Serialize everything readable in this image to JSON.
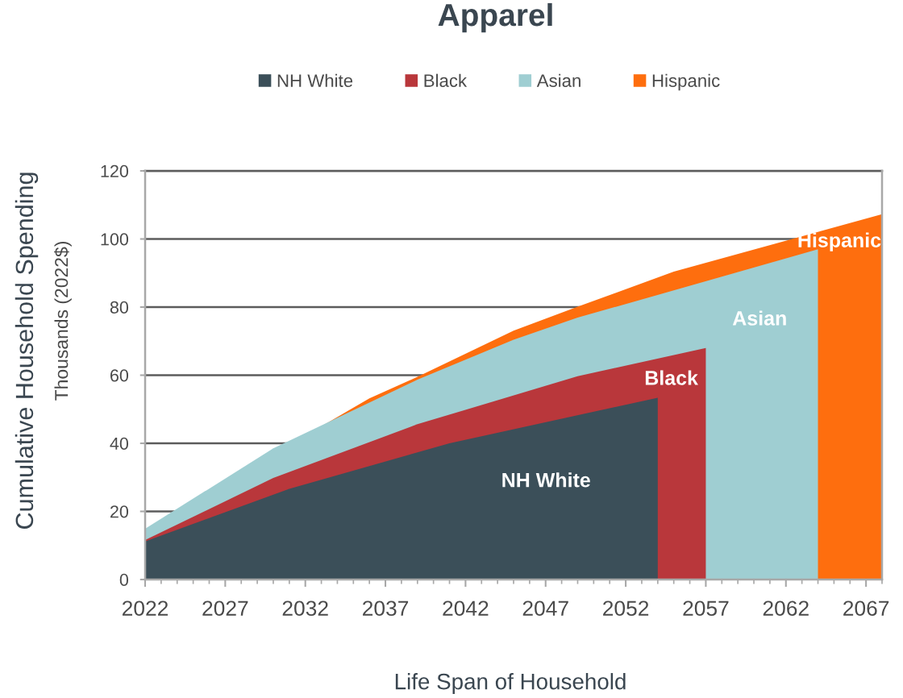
{
  "chart_data": {
    "type": "area",
    "title": "Apparel",
    "xlabel": "Life Span of Household",
    "ylabel": "Cumulative Household Spending\nThousands (2022$)",
    "series": [
      {
        "name": "NH White",
        "color": "#3b4f59",
        "x": [
          2022,
          2031,
          2041,
          2054
        ],
        "values": [
          11.2,
          26.6,
          40.0,
          53.4
        ]
      },
      {
        "name": "Black",
        "color": "#b9373b",
        "x": [
          2022,
          2030,
          2039,
          2049,
          2057
        ],
        "values": [
          11.6,
          29.8,
          45.6,
          59.7,
          68.0
        ]
      },
      {
        "name": "Asian",
        "color": "#9fced2",
        "x": [
          2022,
          2030,
          2039,
          2045,
          2049,
          2064
        ],
        "values": [
          14.9,
          38.5,
          58.7,
          70.4,
          76.9,
          97.0
        ]
      },
      {
        "name": "Hispanic",
        "color": "#fe6e0e",
        "x": [
          2033,
          2036,
          2039,
          2045,
          2049,
          2055,
          2068
        ],
        "values": [
          45.0,
          53.2,
          59.5,
          73.1,
          80.1,
          90.4,
          107.3
        ]
      }
    ],
    "xlim": [
      2022,
      2068
    ],
    "xticks": [
      2022,
      {
        "value": 2023,
        "label": null
      },
      {
        "value": 2024,
        "label": null
      },
      {
        "value": 2025,
        "label": null
      },
      {
        "value": 2026,
        "label": null
      },
      2027,
      {
        "value": 2028,
        "label": null
      },
      {
        "value": 2029,
        "label": null
      },
      {
        "value": 2030,
        "label": null
      },
      {
        "value": 2031,
        "label": null
      },
      2032,
      {
        "value": 2033,
        "label": null
      },
      {
        "value": 2034,
        "label": null
      },
      {
        "value": 2035,
        "label": null
      },
      {
        "value": 2036,
        "label": null
      },
      2037,
      {
        "value": 2038,
        "label": null
      },
      {
        "value": 2039,
        "label": null
      },
      {
        "value": 2040,
        "label": null
      },
      {
        "value": 2041,
        "label": null
      },
      2042,
      {
        "value": 2043,
        "label": null
      },
      {
        "value": 2044,
        "label": null
      },
      {
        "value": 2045,
        "label": null
      },
      {
        "value": 2046,
        "label": null
      },
      2047,
      {
        "value": 2048,
        "label": null
      },
      {
        "value": 2049,
        "label": null
      },
      {
        "value": 2050,
        "label": null
      },
      {
        "value": 2051,
        "label": null
      },
      2052,
      {
        "value": 2053,
        "label": null
      },
      {
        "value": 2054,
        "label": null
      },
      {
        "value": 2055,
        "label": null
      },
      {
        "value": 2056,
        "label": null
      },
      2057,
      {
        "value": 2058,
        "label": null
      },
      {
        "value": 2059,
        "label": null
      },
      {
        "value": 2060,
        "label": null
      },
      {
        "value": 2061,
        "label": null
      },
      2062,
      {
        "value": 2063,
        "label": null
      },
      {
        "value": 2064,
        "label": null
      },
      {
        "value": 2065,
        "label": null
      },
      {
        "value": 2066,
        "label": null
      },
      2067,
      {
        "value": 2068,
        "label": null
      }
    ],
    "ylim": [
      0,
      120
    ],
    "yticks": [
      0,
      20,
      40,
      60,
      80,
      100,
      120
    ],
    "grid": "y",
    "legend": "top",
    "annotations": [
      "NH White",
      "Black",
      "Asian",
      "Hispanic"
    ]
  }
}
